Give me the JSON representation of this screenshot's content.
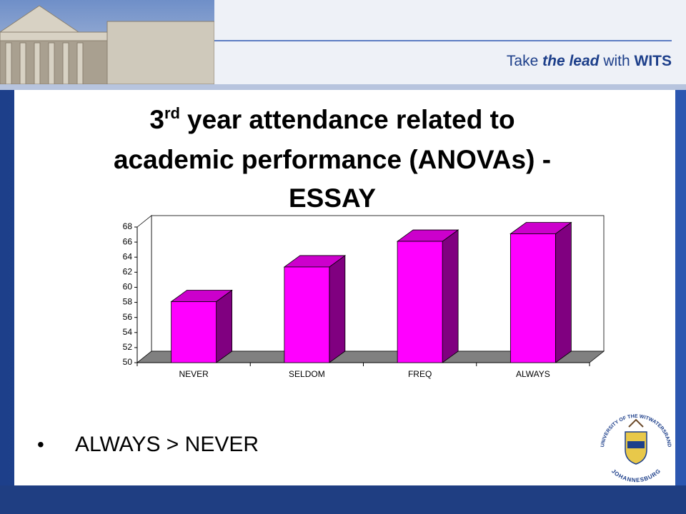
{
  "header": {
    "tagline": [
      "Take ",
      "the lead",
      " with ",
      "WITS"
    ]
  },
  "title": {
    "number": "3",
    "superscript": "rd",
    "line1": "year attendance related to",
    "line2": "academic performance (ANOVAs) -",
    "line3": "ESSAY"
  },
  "chart_data": {
    "type": "bar3d",
    "categories": [
      "NEVER",
      "SELDOM",
      "FREQ",
      "ALWAYS"
    ],
    "values": [
      58.1,
      62.7,
      66.1,
      67.1
    ],
    "color": "#ff00ff",
    "ylim": [
      50,
      68
    ],
    "yticks": [
      50,
      52,
      54,
      56,
      58,
      60,
      62,
      64,
      66,
      68
    ],
    "grid": false
  },
  "bullets": [
    "ALWAYS > NEVER"
  ],
  "logo": {
    "top": "UNIVERSITY OF THE WITWATERSRAND",
    "bottom": "JOHANNESBURG"
  }
}
